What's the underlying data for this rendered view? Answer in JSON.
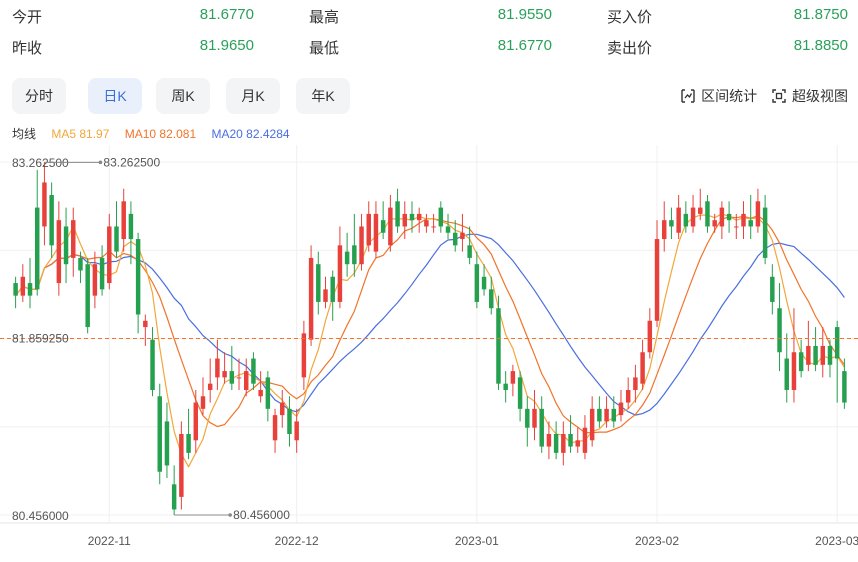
{
  "quote": {
    "open_label": "今开",
    "open": "81.6770",
    "high_label": "最高",
    "high": "81.9550",
    "bid_label": "买入价",
    "bid": "81.8750",
    "prev_label": "昨收",
    "prev": "81.9650",
    "low_label": "最低",
    "low": "81.6770",
    "ask_label": "卖出价",
    "ask": "81.8850"
  },
  "tabs": [
    {
      "label": "分时",
      "active": false
    },
    {
      "label": "日K",
      "active": true
    },
    {
      "label": "周K",
      "active": false
    },
    {
      "label": "月K",
      "active": false
    },
    {
      "label": "年K",
      "active": false
    }
  ],
  "tools": {
    "range_stats": "区间统计",
    "fullscreen": "超级视图"
  },
  "legend": {
    "title": "均线",
    "ma5": "MA5 81.97",
    "ma10": "MA10 82.081",
    "ma20": "MA20 82.4284"
  },
  "colors": {
    "up": "#e8403a",
    "down": "#25a04e",
    "ma5": "#f2a73b",
    "ma10": "#f0742b",
    "ma20": "#4a6ee0",
    "quote_value": "#2aa05a",
    "current_line": "#f0742b"
  },
  "chart_data": {
    "type": "candlestick",
    "ylim": [
      80.456,
      83.2625
    ],
    "y_axis_labels": [
      "83.262500",
      "81.859250",
      "80.456000"
    ],
    "max_marker": "83.262500",
    "min_marker": "80.456000",
    "current_price": 81.85925,
    "x_axis_labels": [
      "2022-11",
      "2022-12",
      "2023-01",
      "2023-02",
      "2023-03"
    ],
    "x_axis_label_positions_index": [
      13,
      39,
      64,
      89,
      114
    ],
    "candles": [
      [
        82.3,
        82.2,
        82.35,
        82.1
      ],
      [
        82.2,
        82.35,
        82.45,
        82.15
      ],
      [
        82.3,
        82.2,
        82.5,
        82.1
      ],
      [
        82.9,
        82.25,
        83.2,
        82.2
      ],
      [
        82.75,
        83.1,
        83.26,
        82.6
      ],
      [
        83.0,
        82.6,
        83.1,
        82.5
      ],
      [
        82.3,
        82.8,
        82.95,
        82.2
      ],
      [
        82.75,
        82.45,
        82.9,
        82.3
      ],
      [
        82.5,
        82.8,
        82.9,
        82.35
      ],
      [
        82.5,
        82.4,
        82.55,
        82.3
      ],
      [
        82.45,
        81.95,
        82.5,
        81.9
      ],
      [
        82.2,
        82.45,
        82.55,
        82.1
      ],
      [
        82.5,
        82.25,
        82.6,
        82.2
      ],
      [
        82.3,
        82.75,
        82.85,
        82.25
      ],
      [
        82.75,
        82.55,
        82.95,
        82.5
      ],
      [
        82.65,
        82.95,
        83.05,
        82.55
      ],
      [
        82.85,
        82.65,
        82.95,
        82.45
      ],
      [
        82.65,
        82.05,
        82.7,
        81.9
      ],
      [
        81.95,
        82.0,
        82.05,
        81.8
      ],
      [
        81.85,
        81.45,
        81.95,
        81.4
      ],
      [
        81.4,
        80.8,
        81.5,
        80.7
      ],
      [
        81.2,
        80.85,
        81.35,
        80.75
      ],
      [
        80.7,
        80.5,
        80.85,
        80.456
      ],
      [
        80.6,
        81.1,
        81.2,
        80.5
      ],
      [
        81.1,
        80.95,
        81.3,
        80.9
      ],
      [
        81.05,
        81.35,
        81.45,
        80.95
      ],
      [
        81.3,
        81.4,
        81.55,
        81.25
      ],
      [
        81.45,
        81.5,
        81.7,
        81.35
      ],
      [
        81.55,
        81.7,
        81.85,
        81.45
      ],
      [
        81.55,
        81.6,
        81.75,
        81.5
      ],
      [
        81.6,
        81.5,
        81.8,
        81.45
      ],
      [
        81.55,
        81.55,
        81.7,
        81.45
      ],
      [
        81.45,
        81.6,
        81.7,
        81.4
      ],
      [
        81.7,
        81.5,
        81.75,
        81.45
      ],
      [
        81.4,
        81.45,
        81.6,
        81.35
      ],
      [
        81.55,
        81.3,
        81.6,
        81.2
      ],
      [
        81.05,
        81.25,
        81.3,
        80.95
      ],
      [
        81.25,
        81.35,
        81.45,
        81.15
      ],
      [
        81.3,
        81.1,
        81.4,
        81.0
      ],
      [
        81.05,
        81.2,
        81.3,
        80.95
      ],
      [
        81.55,
        81.9,
        82.0,
        81.45
      ],
      [
        81.85,
        82.5,
        82.6,
        81.8
      ],
      [
        82.45,
        82.15,
        82.55,
        82.05
      ],
      [
        82.15,
        82.25,
        82.35,
        82.1
      ],
      [
        82.35,
        82.15,
        82.4,
        82.0
      ],
      [
        82.15,
        82.6,
        82.75,
        82.1
      ],
      [
        82.55,
        82.45,
        82.7,
        82.35
      ],
      [
        82.6,
        82.45,
        82.85,
        82.35
      ],
      [
        82.45,
        82.75,
        82.85,
        82.4
      ],
      [
        82.6,
        82.85,
        82.95,
        82.55
      ],
      [
        82.55,
        82.85,
        82.95,
        82.5
      ],
      [
        82.8,
        82.7,
        82.95,
        82.65
      ],
      [
        82.6,
        82.9,
        83.0,
        82.55
      ],
      [
        82.95,
        82.75,
        83.05,
        82.7
      ],
      [
        82.75,
        82.85,
        82.95,
        82.65
      ],
      [
        82.85,
        82.8,
        82.95,
        82.7
      ],
      [
        82.8,
        82.85,
        82.9,
        82.7
      ],
      [
        82.75,
        82.8,
        82.85,
        82.7
      ],
      [
        82.75,
        82.75,
        82.85,
        82.7
      ],
      [
        82.9,
        82.75,
        82.95,
        82.7
      ],
      [
        82.75,
        82.7,
        82.85,
        82.65
      ],
      [
        82.7,
        82.6,
        82.8,
        82.55
      ],
      [
        82.65,
        82.7,
        82.85,
        82.55
      ],
      [
        82.6,
        82.5,
        82.75,
        82.45
      ],
      [
        82.45,
        82.15,
        82.55,
        82.1
      ],
      [
        82.35,
        82.25,
        82.45,
        82.2
      ],
      [
        82.25,
        82.1,
        82.35,
        82.05
      ],
      [
        82.1,
        81.5,
        82.2,
        81.45
      ],
      [
        81.5,
        81.45,
        81.6,
        81.35
      ],
      [
        81.5,
        81.6,
        81.65,
        81.4
      ],
      [
        81.55,
        81.3,
        81.6,
        81.2
      ],
      [
        81.3,
        81.15,
        81.4,
        81.0
      ],
      [
        81.15,
        81.3,
        81.45,
        81.05
      ],
      [
        81.3,
        81.0,
        81.4,
        80.95
      ],
      [
        81.0,
        81.1,
        81.2,
        80.9
      ],
      [
        81.1,
        80.95,
        81.2,
        80.9
      ],
      [
        80.95,
        81.1,
        81.2,
        80.85
      ],
      [
        81.1,
        81.0,
        81.25,
        80.95
      ],
      [
        81.0,
        81.05,
        81.15,
        80.95
      ],
      [
        80.95,
        81.15,
        81.25,
        80.9
      ],
      [
        81.05,
        81.3,
        81.4,
        81.0
      ],
      [
        81.3,
        81.2,
        81.4,
        81.15
      ],
      [
        81.2,
        81.3,
        81.4,
        81.15
      ],
      [
        81.3,
        81.2,
        81.4,
        81.15
      ],
      [
        81.25,
        81.35,
        81.45,
        81.2
      ],
      [
        81.35,
        81.45,
        81.55,
        81.3
      ],
      [
        81.45,
        81.55,
        81.65,
        81.35
      ],
      [
        81.5,
        81.75,
        81.85,
        81.45
      ],
      [
        81.75,
        82.0,
        82.1,
        81.7
      ],
      [
        82.0,
        82.65,
        82.8,
        81.95
      ],
      [
        82.65,
        82.8,
        82.95,
        82.55
      ],
      [
        82.8,
        82.75,
        82.9,
        82.65
      ],
      [
        82.7,
        82.9,
        83.0,
        82.65
      ],
      [
        82.85,
        82.75,
        82.95,
        82.7
      ],
      [
        82.75,
        82.9,
        83.0,
        82.7
      ],
      [
        82.85,
        82.9,
        83.05,
        82.8
      ],
      [
        82.95,
        82.75,
        83.0,
        82.7
      ],
      [
        82.75,
        82.8,
        82.85,
        82.7
      ],
      [
        82.75,
        82.9,
        82.95,
        82.65
      ],
      [
        82.85,
        82.8,
        82.95,
        82.7
      ],
      [
        82.75,
        82.75,
        82.85,
        82.65
      ],
      [
        82.75,
        82.85,
        82.95,
        82.65
      ],
      [
        82.8,
        82.75,
        83.0,
        82.65
      ],
      [
        82.75,
        82.95,
        83.05,
        82.7
      ],
      [
        82.9,
        82.5,
        83.0,
        82.45
      ],
      [
        82.35,
        82.15,
        82.45,
        82.05
      ],
      [
        82.1,
        81.75,
        82.3,
        81.6
      ],
      [
        81.7,
        81.45,
        81.9,
        81.35
      ],
      [
        81.45,
        81.75,
        82.1,
        81.35
      ],
      [
        81.75,
        81.6,
        81.85,
        81.55
      ],
      [
        81.65,
        81.8,
        82.0,
        81.6
      ],
      [
        81.8,
        81.65,
        81.95,
        81.6
      ],
      [
        81.65,
        81.8,
        81.95,
        81.55
      ],
      [
        81.8,
        81.65,
        81.85,
        81.55
      ],
      [
        81.95,
        81.7,
        82.0,
        81.35
      ],
      [
        81.6,
        81.35,
        81.7,
        81.3
      ]
    ]
  }
}
